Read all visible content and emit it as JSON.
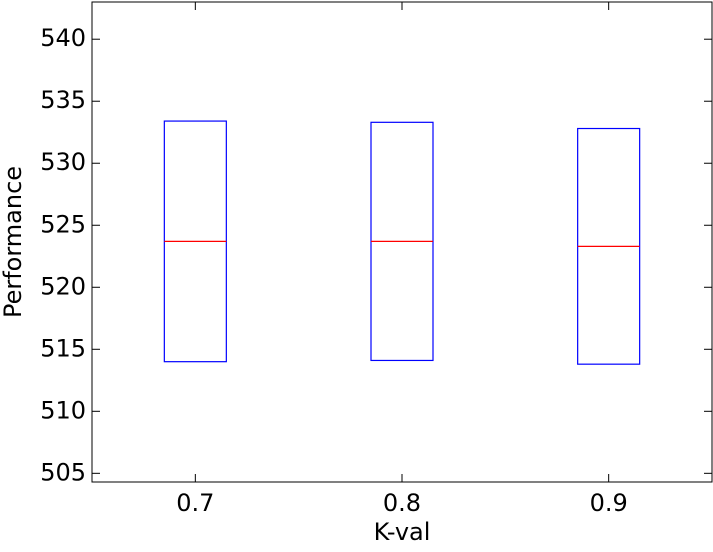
{
  "chart_data": {
    "type": "box",
    "x_label": "K-val",
    "y_label": "Performance",
    "categories": [
      "0.7",
      "0.8",
      "0.9"
    ],
    "q1": [
      514.0,
      514.1,
      513.8
    ],
    "median": [
      523.7,
      523.7,
      523.3
    ],
    "q3": [
      533.4,
      533.3,
      532.8
    ],
    "box_color": "#0000ff",
    "median_color": "#ff0000",
    "ylim": [
      504.3,
      543
    ],
    "yticks": [
      505,
      510,
      515,
      520,
      525,
      530,
      535,
      540
    ],
    "grid": false
  }
}
